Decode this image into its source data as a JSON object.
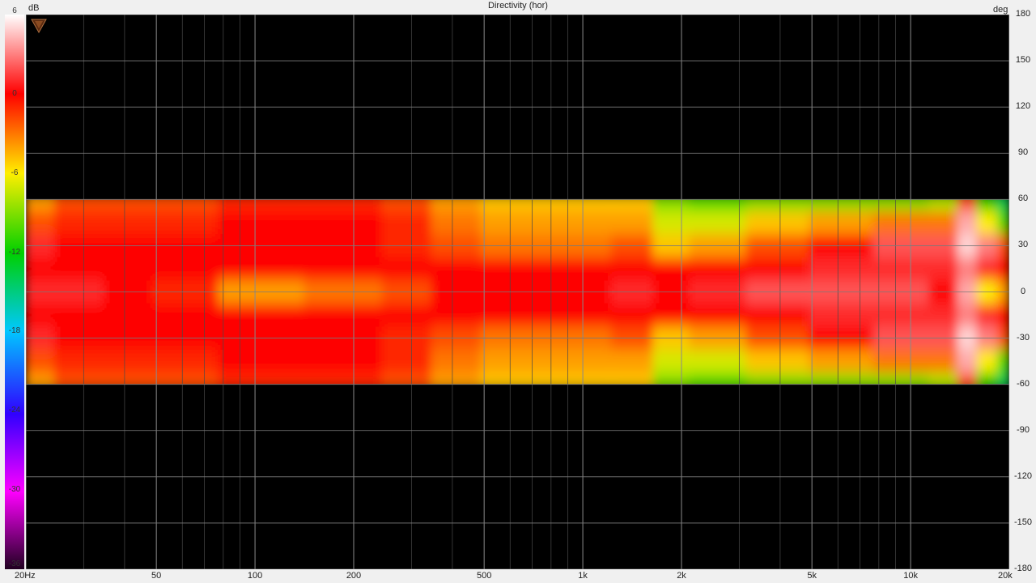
{
  "chart_data": {
    "type": "heatmap",
    "title": "Directivity (hor)",
    "x_unit_label": "",
    "y_unit_label": "deg",
    "colorbar_unit_label": "dB",
    "x_scale": "log",
    "xlim": [
      20,
      20000
    ],
    "ylim": [
      -180,
      180
    ],
    "x_ticks": [
      {
        "value": 20,
        "label": "20Hz"
      },
      {
        "value": 50,
        "label": "50"
      },
      {
        "value": 100,
        "label": "100"
      },
      {
        "value": 200,
        "label": "200"
      },
      {
        "value": 500,
        "label": "500"
      },
      {
        "value": 1000,
        "label": "1k"
      },
      {
        "value": 2000,
        "label": "2k"
      },
      {
        "value": 5000,
        "label": "5k"
      },
      {
        "value": 10000,
        "label": "10k"
      },
      {
        "value": 20000,
        "label": "20k"
      }
    ],
    "y_ticks": [
      180,
      150,
      120,
      90,
      60,
      30,
      0,
      -30,
      -60,
      -90,
      -120,
      -150,
      -180
    ],
    "colorbar_ticks": [
      6,
      0,
      -6,
      -12,
      -18,
      -24,
      -30,
      -36
    ],
    "colorbar_range": [
      -36,
      6
    ],
    "grid": true,
    "angle_range": [
      -60,
      60
    ],
    "levels_db": {
      "frequencies": [
        20,
        30,
        40,
        60,
        100,
        200,
        300,
        400,
        600,
        1000,
        1500,
        1800,
        2500,
        4000,
        6000,
        10000,
        13000,
        15000,
        17000,
        20000
      ],
      "angles": [
        0,
        15,
        30,
        45,
        60
      ],
      "values": [
        [
          1,
          1,
          0,
          -1,
          -4,
          -3,
          -2,
          0,
          0,
          0,
          1,
          0,
          1,
          2,
          2,
          2,
          0,
          4,
          -6,
          -4
        ],
        [
          0,
          0,
          0,
          0,
          0,
          0,
          0,
          0,
          0,
          0,
          0,
          0,
          0,
          0,
          1,
          1,
          1,
          3,
          1,
          0
        ],
        [
          1,
          0,
          0,
          0,
          0,
          0,
          -1,
          -2,
          -3,
          -3,
          -2,
          -5,
          -4,
          -2,
          0,
          2,
          2,
          5,
          3,
          -2
        ],
        [
          -2,
          -1,
          -1,
          -1,
          0,
          0,
          -1,
          -3,
          -4,
          -4,
          -4,
          -7,
          -7,
          -5,
          -4,
          -3,
          -3,
          4,
          -6,
          -10
        ],
        [
          -4,
          -2,
          -2,
          -2,
          -1,
          -1,
          -2,
          -4,
          -5,
          -5,
          -5,
          -9,
          -10,
          -9,
          -9,
          -9,
          -8,
          -2,
          -12,
          -14
        ]
      ]
    }
  }
}
